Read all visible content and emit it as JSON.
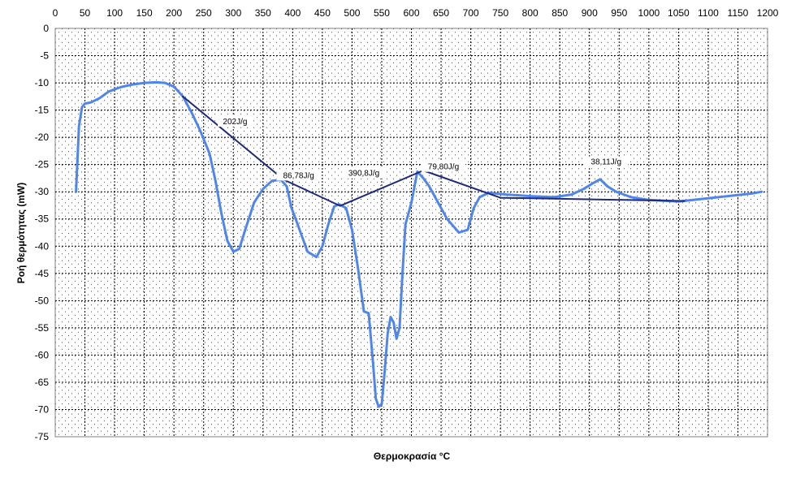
{
  "chart_data": {
    "type": "line",
    "title": "",
    "xlabel": "Θερμοκρασία °C",
    "ylabel": "Ροή θερμότητας (mW)",
    "xlim": [
      0,
      1200
    ],
    "ylim": [
      -75,
      0
    ],
    "x_ticks": [
      "0",
      "50",
      "100",
      "150",
      "200",
      "250",
      "300",
      "350",
      "400",
      "450",
      "500",
      "550",
      "600",
      "650",
      "700",
      "750",
      "800",
      "850",
      "900",
      "950",
      "1000",
      "1050",
      "1100",
      "1150",
      "1200"
    ],
    "y_ticks": [
      "0",
      "-5",
      "-10",
      "-15",
      "-20",
      "-25",
      "-30",
      "-35",
      "-40",
      "-45",
      "-50",
      "-55",
      "-60",
      "-65",
      "-70",
      "-75"
    ],
    "x_axis_position": "top",
    "grid": true,
    "colors": {
      "curve": "#4f86ec",
      "baseline": "#1f2a7a",
      "grid": "#000000"
    },
    "series": [
      {
        "role": "curve",
        "x": [
          35,
          40,
          45,
          50,
          60,
          75,
          90,
          110,
          130,
          150,
          170,
          185,
          200,
          215,
          230,
          245,
          260,
          270,
          280,
          290,
          300,
          310,
          320,
          335,
          350,
          365,
          380,
          390,
          398,
          405,
          415,
          425,
          440,
          450,
          460,
          470,
          478,
          490,
          500,
          510,
          520,
          528,
          535,
          540,
          545,
          550,
          555,
          560,
          565,
          570,
          575,
          580,
          585,
          590,
          600,
          610,
          620,
          630,
          645,
          660,
          680,
          695,
          705,
          715,
          730,
          760,
          800,
          840,
          870,
          890,
          905,
          918,
          930,
          945,
          970,
          1000,
          1050,
          1100,
          1150,
          1175,
          1190
        ],
        "y": [
          -30,
          -18,
          -14.5,
          -13.8,
          -13.6,
          -12.8,
          -11.6,
          -10.8,
          -10.3,
          -10,
          -9.9,
          -10,
          -10.7,
          -12.5,
          -15.5,
          -19,
          -23,
          -28,
          -34,
          -39,
          -41,
          -40.5,
          -37,
          -32,
          -29.5,
          -28,
          -27.8,
          -29,
          -33,
          -35,
          -38,
          -41,
          -42,
          -40,
          -36,
          -32.7,
          -32.3,
          -33,
          -37,
          -44,
          -52,
          -52.3,
          -61,
          -68,
          -69.5,
          -69,
          -63,
          -56,
          -53,
          -54,
          -57,
          -55,
          -45,
          -36,
          -32,
          -26.3,
          -27.5,
          -29,
          -32,
          -35,
          -37.5,
          -37,
          -33,
          -31,
          -30.2,
          -30.5,
          -30.8,
          -31,
          -30.5,
          -29.5,
          -28.5,
          -27.7,
          -29,
          -30,
          -31,
          -31.5,
          -31.8,
          -31.2,
          -30.6,
          -30.3,
          -30
        ]
      },
      {
        "role": "baseline",
        "x": [
          215,
          385,
          480,
          620,
          750,
          1060
        ],
        "y": [
          -12.5,
          -27.8,
          -32.6,
          -26.1,
          -31.1,
          -31.7
        ]
      }
    ],
    "annotations": [
      {
        "text": "202J/g",
        "x": 303,
        "y": -17.3
      },
      {
        "text": "86,78J/g",
        "x": 410,
        "y": -27.2
      },
      {
        "text": "390,8J/g",
        "x": 520,
        "y": -26.8
      },
      {
        "text": "79,80J/g",
        "x": 654,
        "y": -25.6
      },
      {
        "text": "38,11J/g",
        "x": 928,
        "y": -24.7
      }
    ]
  }
}
